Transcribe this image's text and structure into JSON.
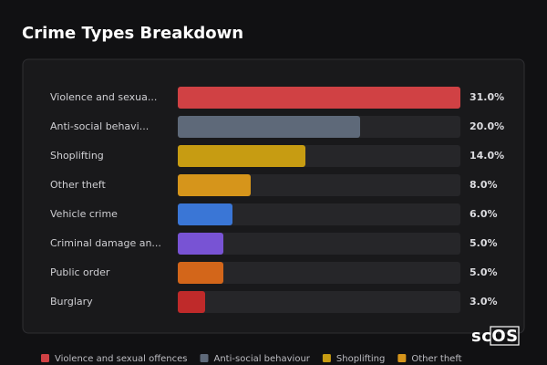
{
  "chart_data": {
    "type": "bar",
    "title": "Crime Types Breakdown",
    "categories": [
      "Violence and sexua...",
      "Anti-social behavi...",
      "Shoplifting",
      "Other theft",
      "Vehicle crime",
      "Criminal damage an...",
      "Public order",
      "Burglary"
    ],
    "values": [
      31,
      20,
      14,
      8,
      6,
      5,
      5,
      3
    ],
    "value_labels": [
      "31.0%",
      "20.0%",
      "14.0%",
      "8.0%",
      "6.0%",
      "5.0%",
      "5.0%",
      "3.0%"
    ],
    "colors": [
      "#d04144",
      "#5e6979",
      "#c79c12",
      "#d6951b",
      "#3a76d6",
      "#7853d4",
      "#d3661a",
      "#bf2a2a"
    ],
    "xlim": [
      0,
      31
    ],
    "legend": [
      {
        "name": "Violence and sexual offences",
        "color": "#d04144"
      },
      {
        "name": "Anti-social behaviour",
        "color": "#5e6979"
      },
      {
        "name": "Shoplifting",
        "color": "#c79c12"
      },
      {
        "name": "Other theft",
        "color": "#d6951b"
      }
    ]
  },
  "watermark": "scOS"
}
